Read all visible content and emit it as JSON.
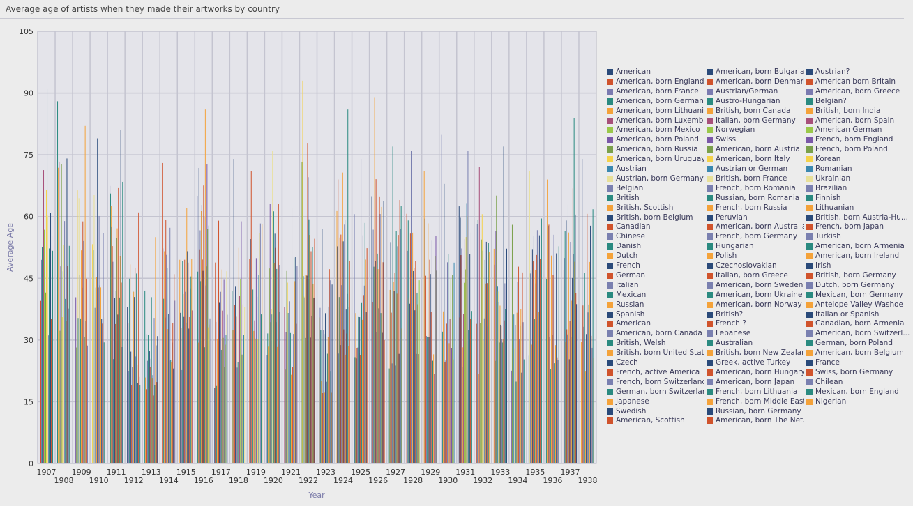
{
  "title": "Average age of artists when they made their artworks by country",
  "chart_data": {
    "type": "bar",
    "title": "Average age of artists when they made their artworks by country",
    "xlabel": "Year",
    "ylabel": "Average Age",
    "ylim": [
      0,
      105
    ],
    "yticks": [
      0,
      15,
      30,
      45,
      60,
      75,
      90,
      105
    ],
    "grid": true,
    "legend_position": "right",
    "categories": [
      "1907",
      "1908",
      "1909",
      "1910",
      "1911",
      "1912",
      "1913",
      "1914",
      "1915",
      "1916",
      "1917",
      "1918",
      "1919",
      "1920",
      "1921",
      "1922",
      "1923",
      "1924",
      "1925",
      "1926",
      "1927",
      "1928",
      "1929",
      "1930",
      "1931",
      "1932",
      "1933",
      "1934",
      "1935",
      "1936",
      "1937",
      "1938"
    ],
    "series_names": [
      "American",
      "American, born England",
      "American, born France",
      "American, born Germany",
      "American, born Lithuania",
      "American, born Luxemb...",
      "American, born Mexico",
      "American, born Poland",
      "American, born Russia",
      "American, born Uruguay",
      "Austrian",
      "Austrian, born Germany",
      "Belgian",
      "British",
      "British, Scottish",
      "British, born Belgium",
      "Canadian",
      "Chinese",
      "Danish",
      "Dutch",
      "French",
      "German",
      "Italian",
      "Mexican",
      "Russian",
      "Spanish",
      "American",
      "American, born Canada",
      "British, Welsh",
      "British, born United States",
      "Czech",
      "French, active America",
      "French, born Switzerland",
      "German, born Switzerland",
      "Japanese",
      "Swedish",
      "American, Scottish",
      "American, born Bulgaria",
      "American, born Denmark",
      "Austrian/German",
      "Austro-Hungarian",
      "British, born Canada",
      "Italian, born Germany",
      "Norwegian",
      "Swiss",
      "American, born Austria",
      "American, born Italy",
      "Austrian or German",
      "British, born France",
      "French, born Romania",
      "Russian, born Romania",
      "French, born Russia",
      "Peruvian",
      "American, born Australia",
      "French, born Germany",
      "Hungarian",
      "Polish",
      "Czechoslovakian",
      "Italian, born Greece",
      "American, born Sweden",
      "American, born Ukraine",
      "American, born Norway",
      "British?",
      "French ?",
      "Lebanese",
      "Australian",
      "British, born New Zealand",
      "Greek, active Turkey",
      "American, born Hungary",
      "American, born Japan",
      "French, born Lithuania",
      "French, born Middle East",
      "Russian, born Germany",
      "American, born The Net...",
      "Austrian?",
      "American born Britain",
      "American, born Greece",
      "Belgian?",
      "British, born India",
      "American, born Spain",
      "American German",
      "French, born England",
      "French, born Poland",
      "Korean",
      "Romanian",
      "Ukrainian",
      "Brazilian",
      "Finnish",
      "Lithuanian",
      "British, born Austria-Hu...",
      "French, born Japan",
      "Turkish",
      "American, born Armenia",
      "American, born Ireland",
      "Irish",
      "British, born Germany",
      "Dutch, born Germany",
      "Mexican, born Germany",
      "Antelope Valley Washoe",
      "Italian or Spanish",
      "Canadian, born Armenia",
      "American, born Switzerl...",
      "German, born Poland",
      "American, born Belgium",
      "France",
      "Swiss, born Germany",
      "Chilean",
      "Mexican, born England",
      "Nigerian"
    ],
    "series_colors": [
      "#2a4a7a",
      "#d0532c",
      "#7a7ab0",
      "#2a8a80",
      "#f4a23a",
      "#a8507a",
      "#9ac84a",
      "#7a58a8",
      "#7aa04a",
      "#f4d24a",
      "#3a88b0",
      "#e8e098",
      "#7a80b0",
      "#2a8a80",
      "#f4a23a",
      "#2a4a7a",
      "#d0532c",
      "#7a80b0",
      "#2a8a80",
      "#f4a23a",
      "#2a4a7a",
      "#d0532c",
      "#7a80b0",
      "#2a8a80",
      "#f4a23a",
      "#2a4a7a",
      "#d0532c",
      "#7a80b0",
      "#2a8a80",
      "#f4a23a",
      "#2a4a7a",
      "#d0532c",
      "#7a80b0",
      "#2a8a80",
      "#f4a23a",
      "#2a4a7a",
      "#d0532c"
    ],
    "tallest_bar_values": [
      91,
      88,
      82,
      79,
      81,
      61,
      55,
      73,
      62,
      86,
      59,
      74,
      71,
      76,
      62,
      93,
      57,
      86,
      74,
      89,
      77,
      76,
      71,
      80,
      76,
      72,
      77,
      58,
      71,
      69,
      84,
      74
    ]
  }
}
